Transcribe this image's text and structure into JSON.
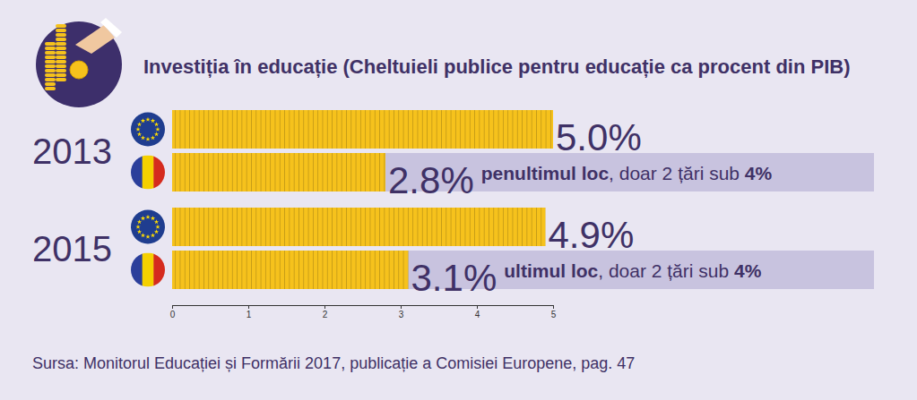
{
  "chart_data": {
    "type": "bar",
    "orientation": "horizontal",
    "title": "Investiția în educație (Cheltuieli publice pentru educație ca procent din PIB)",
    "source": "Sursa: Monitorul Educației și Formării 2017, publicație a Comisiei Europene, pag. 47",
    "categories": [
      "2013",
      "2015"
    ],
    "series": [
      {
        "color": "#f6c21c",
        "values": [
          5.0,
          4.9
        ],
        "value_labels": [
          "5.0%",
          "4.9%"
        ]
      },
      {
        "color": "#f6c21c",
        "values": [
          2.8,
          3.1
        ],
        "value_labels": [
          "2.8%",
          "3.1%"
        ],
        "annotations": [
          [
            "penultimul loc",
            ", doar 2 țări sub ",
            "4%"
          ],
          [
            "ultimul loc",
            ", doar 2 țări sub ",
            "4%"
          ]
        ]
      }
    ],
    "xlim": [
      0,
      5
    ],
    "xticks": [
      0,
      1,
      2,
      3,
      4,
      5
    ],
    "data_labels": true,
    "grid": false
  }
}
